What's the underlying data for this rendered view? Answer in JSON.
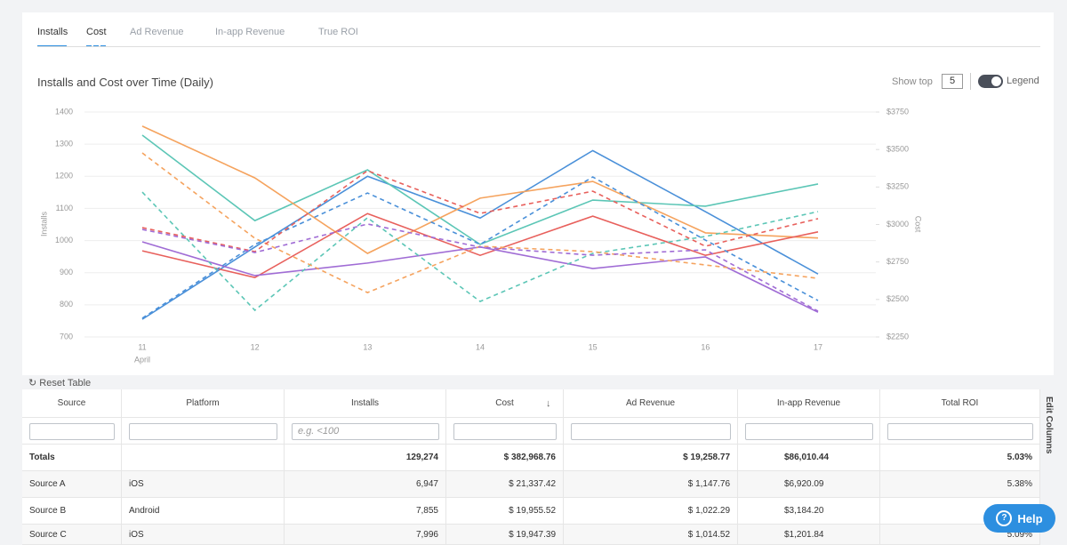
{
  "tabs": [
    "Installs",
    "Cost",
    "Ad Revenue",
    "In-app Revenue",
    "True ROI"
  ],
  "controls": {
    "show_top_label": "Show top",
    "show_top_value": "5",
    "legend_label": "Legend"
  },
  "chart_data": {
    "type": "line",
    "title": "Installs and Cost over Time (Daily)",
    "categories": [
      "11",
      "12",
      "13",
      "14",
      "15",
      "16",
      "17"
    ],
    "annotations": [
      "April"
    ],
    "ylabel": "Installs",
    "y2label": "Cost",
    "ylim": [
      700,
      1400
    ],
    "yticks": [
      700,
      800,
      900,
      1000,
      1100,
      1200,
      1300,
      1400
    ],
    "y2lim": [
      2250,
      3750
    ],
    "y2ticks": [
      {
        "value": 2250,
        "label": "$2250"
      },
      {
        "value": 2500,
        "label": "$2500"
      },
      {
        "value": 2750,
        "label": "$2750"
      },
      {
        "value": 3000,
        "label": "$3000"
      },
      {
        "value": 3250,
        "label": "$3250"
      },
      {
        "value": 3500,
        "label": "$3500"
      },
      {
        "value": 3750,
        "label": "$3750"
      }
    ],
    "grid": true,
    "series": [
      {
        "color": "#4a90d9",
        "axis": "y",
        "style": "solid",
        "values": [
          755,
          980,
          1200,
          1070,
          1280,
          1090,
          896
        ]
      },
      {
        "color": "#5cc6b6",
        "axis": "y",
        "style": "solid",
        "values": [
          1328,
          1062,
          1220,
          988,
          1126,
          1107,
          1176
        ]
      },
      {
        "color": "#f5a35e",
        "axis": "y",
        "style": "solid",
        "values": [
          1356,
          1195,
          960,
          1132,
          1184,
          1024,
          1008
        ]
      },
      {
        "color": "#e8605c",
        "axis": "y",
        "style": "solid",
        "values": [
          968,
          885,
          1084,
          954,
          1076,
          954,
          1027
        ]
      },
      {
        "color": "#a06cd5",
        "axis": "y",
        "style": "solid",
        "values": [
          996,
          891,
          930,
          980,
          913,
          949,
          777
        ]
      },
      {
        "color": "#4a90d9",
        "axis": "y2",
        "style": "dashed",
        "values": [
          2375,
          2867,
          3210,
          2867,
          3317,
          2896,
          2493
        ]
      },
      {
        "color": "#5cc6b6",
        "axis": "y2",
        "style": "dashed",
        "values": [
          3216,
          2428,
          3045,
          2487,
          2807,
          2920,
          3086
        ]
      },
      {
        "color": "#f5a35e",
        "axis": "y2",
        "style": "dashed",
        "values": [
          3477,
          2908,
          2546,
          2855,
          2819,
          2730,
          2641
        ]
      },
      {
        "color": "#e8605c",
        "axis": "y2",
        "style": "dashed",
        "values": [
          2979,
          2819,
          3359,
          3074,
          3222,
          2855,
          3039
        ]
      },
      {
        "color": "#a06cd5",
        "axis": "y2",
        "style": "dashed",
        "values": [
          2967,
          2813,
          3003,
          2849,
          2795,
          2831,
          2422
        ]
      }
    ]
  },
  "table": {
    "reset_label": "Reset Table",
    "edit_columns": "Edit Columns",
    "installs_placeholder": "e.g. <100",
    "headers": [
      "Source",
      "Platform",
      "Installs",
      "Cost",
      "Ad Revenue",
      "In-app Revenue",
      "Total ROI"
    ],
    "rows": [
      [
        "Totals",
        null,
        "129,274",
        "$ 382,968.76",
        "$ 19,258.77",
        "$86,010.44",
        "5.03%"
      ],
      [
        "Source A",
        "iOS",
        "6,947",
        "$ 21,337.42",
        "$ 1,147.76",
        "$6,920.09",
        "5.38%"
      ],
      [
        "Source B",
        "Android",
        "7,855",
        "$ 19,955.52",
        "$ 1,022.29",
        "$3,184.20",
        null
      ],
      [
        "Source C",
        "iOS",
        "7,996",
        "$ 19,947.39",
        "$ 1,014.52",
        "$1,201.84",
        "5.09%"
      ]
    ]
  },
  "help": "Help"
}
